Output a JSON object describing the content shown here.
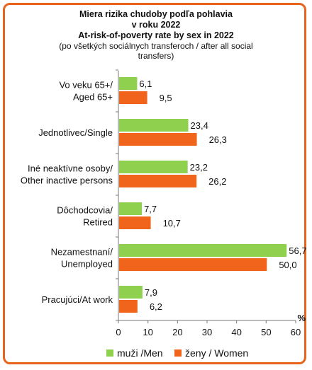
{
  "title": {
    "line1": "Miera rizika chudoby podľa pohlavia",
    "line2": "v roku 2022",
    "line3": "At-risk-of-poverty rate by sex in 2022",
    "line4": "(po všetkých sociálnych transferoch / after all social",
    "line5": "transfers)"
  },
  "chart_data": {
    "type": "bar",
    "orientation": "horizontal",
    "categories": [
      [
        "Vo veku 65+/",
        "Aged 65+"
      ],
      [
        "Jednotlivec/Single"
      ],
      [
        "Iné neaktívne osoby/",
        "Other inactive persons"
      ],
      [
        "Dôchodcovia/",
        "Retired"
      ],
      [
        "Nezamestnaní/",
        "Unemployed"
      ],
      [
        "Pracujúci/At work"
      ]
    ],
    "series": [
      {
        "name": "muži /Men",
        "color": "#8fd14f",
        "values": [
          6.1,
          23.4,
          23.2,
          7.7,
          56.7,
          7.9
        ],
        "labels": [
          "6,1",
          "23,4",
          "23,2",
          "7,7",
          "56,7",
          "7,9"
        ]
      },
      {
        "name": "ženy / Women",
        "color": "#f0641c",
        "values": [
          9.5,
          26.3,
          26.2,
          10.7,
          50.0,
          6.2
        ],
        "labels": [
          "9,5",
          "26,3",
          "26,2",
          "10,7",
          "50,0",
          "6,2"
        ]
      }
    ],
    "xlim": [
      0,
      60
    ],
    "xticks": [
      "0",
      "10",
      "20",
      "30",
      "40",
      "50",
      "60"
    ],
    "xunit": "%",
    "grid": false,
    "legend_position": "bottom"
  }
}
